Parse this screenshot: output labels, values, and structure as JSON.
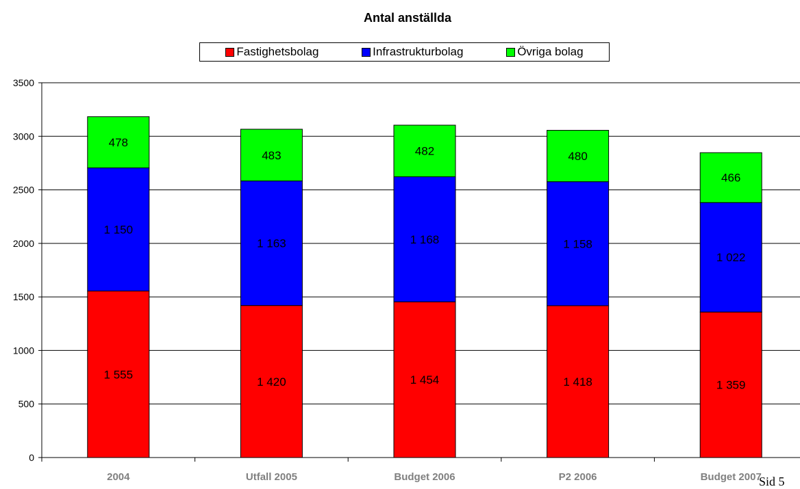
{
  "chart_data": {
    "type": "bar",
    "stacked": true,
    "title": "Antal anställda",
    "xlabel": "",
    "ylabel": "",
    "categories": [
      "2004",
      "Utfall 2005",
      "Budget 2006",
      "P2 2006",
      "Budget 2007"
    ],
    "series": [
      {
        "name": "Fastighetsbolag",
        "color": "#ff0000",
        "values": [
          1555,
          1420,
          1454,
          1418,
          1359
        ],
        "labels": [
          "1 555",
          "1 420",
          "1 454",
          "1 418",
          "1 359"
        ]
      },
      {
        "name": "Infrastrukturbolag",
        "color": "#0000ff",
        "values": [
          1150,
          1163,
          1168,
          1158,
          1022
        ],
        "labels": [
          "1 150",
          "1 163",
          "1 168",
          "1 158",
          "1 022"
        ]
      },
      {
        "name": "Övriga bolag",
        "color": "#00ff00",
        "values": [
          478,
          483,
          482,
          480,
          466
        ],
        "labels": [
          "478",
          "483",
          "482",
          "480",
          "466"
        ]
      }
    ],
    "ylim": [
      0,
      3500
    ],
    "yticks": [
      0,
      500,
      1000,
      1500,
      2000,
      2500,
      3000,
      3500
    ],
    "grid": true,
    "legend_position": "top"
  },
  "page_note": "Sid 5"
}
